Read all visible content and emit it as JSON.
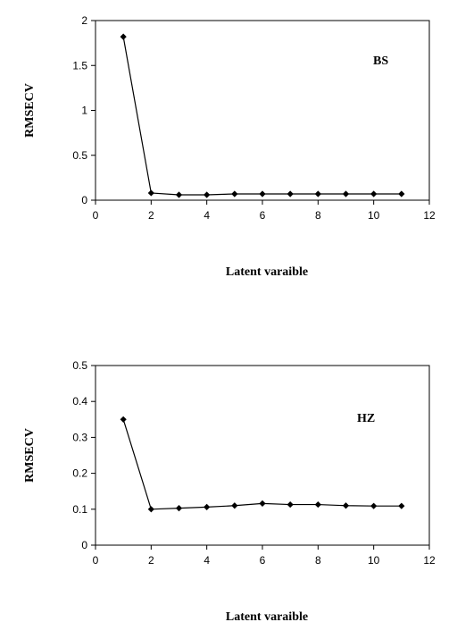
{
  "chart_data": [
    {
      "type": "line",
      "panel_label": "BS",
      "xlabel": "Latent varaible",
      "ylabel": "RMSECV",
      "xlim": [
        0,
        12
      ],
      "ylim": [
        0,
        2
      ],
      "x_ticks": [
        "0",
        "2",
        "4",
        "6",
        "8",
        "10",
        "12"
      ],
      "y_ticks": [
        "0",
        "0.5",
        "1",
        "1.5",
        "2"
      ],
      "grid": false,
      "series": [
        {
          "x": [
            1,
            2,
            3,
            4,
            5,
            6,
            7,
            8,
            9,
            10,
            11
          ],
          "y": [
            1.82,
            0.08,
            0.06,
            0.06,
            0.07,
            0.07,
            0.07,
            0.07,
            0.07,
            0.07,
            0.07
          ]
        }
      ]
    },
    {
      "type": "line",
      "panel_label": "HZ",
      "xlabel": "Latent varaible",
      "ylabel": "RMSECV",
      "xlim": [
        0,
        12
      ],
      "ylim": [
        0,
        0.5
      ],
      "x_ticks": [
        "0",
        "2",
        "4",
        "6",
        "8",
        "10",
        "12"
      ],
      "y_ticks": [
        "0",
        "0.1",
        "0.2",
        "0.3",
        "0.4",
        "0.5"
      ],
      "grid": false,
      "series": [
        {
          "x": [
            1,
            2,
            3,
            4,
            5,
            6,
            7,
            8,
            9,
            10,
            11
          ],
          "y": [
            0.35,
            0.1,
            0.103,
            0.106,
            0.11,
            0.116,
            0.113,
            0.113,
            0.11,
            0.109,
            0.109
          ]
        }
      ]
    }
  ]
}
